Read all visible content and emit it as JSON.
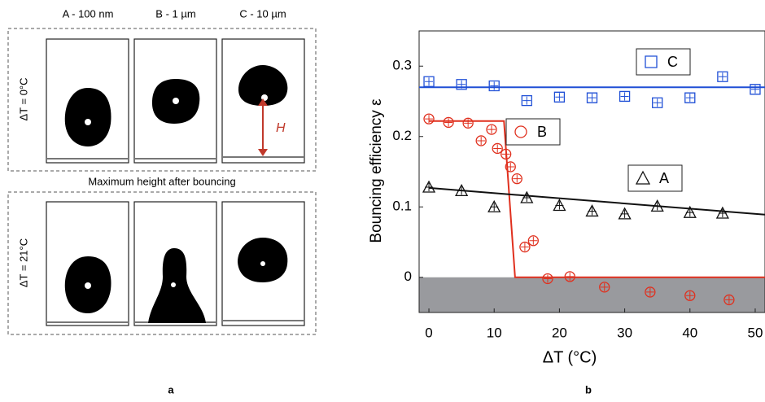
{
  "panel_a": {
    "columns": [
      "A - 100 nm",
      "B - 1 µm",
      "C - 10 µm"
    ],
    "rows": [
      "ΔT = 0°C",
      "ΔT = 21°C"
    ],
    "caption": "Maximum height after bouncing",
    "height_label": "H",
    "label": "a"
  },
  "panel_b_label": "b",
  "chart_data": {
    "type": "scatter",
    "ylabel": "Bouncing efficiency ε",
    "xlabel": "ΔT (°C)",
    "xlim": [
      -1.5,
      51.5
    ],
    "ylim": [
      -0.05,
      0.35
    ],
    "xticks": [
      0,
      10,
      20,
      30,
      40,
      50
    ],
    "yticks": [
      0,
      0.1,
      0.2,
      0.3
    ],
    "shade_below_zero": "#999a9e",
    "series": [
      {
        "name": "C",
        "color": "#1f4fd6",
        "marker": "square",
        "x": [
          0,
          5,
          10,
          15,
          20,
          25,
          30,
          35,
          40,
          45,
          50
        ],
        "values": [
          0.278,
          0.274,
          0.272,
          0.251,
          0.256,
          0.255,
          0.257,
          0.248,
          0.255,
          0.285,
          0.267
        ],
        "fit": {
          "x": [
            -1.5,
            51.5
          ],
          "values": [
            0.27,
            0.27
          ]
        }
      },
      {
        "name": "B",
        "color": "#e0301e",
        "marker": "circle",
        "x": [
          0,
          3,
          6,
          8,
          9.6,
          10.5,
          11.8,
          12.5,
          13.5,
          14.7,
          16,
          18.2,
          21.6,
          26.9,
          33.9,
          40,
          46
        ],
        "values": [
          0.225,
          0.22,
          0.219,
          0.194,
          0.21,
          0.183,
          0.175,
          0.157,
          0.14,
          0.043,
          0.052,
          -0.002,
          0.001,
          -0.014,
          -0.021,
          -0.026,
          -0.032
        ],
        "fit": {
          "x": [
            0,
            11.5,
            13.2,
            51.5
          ],
          "values": [
            0.222,
            0.222,
            0,
            0
          ]
        }
      },
      {
        "name": "A",
        "color": "#111111",
        "marker": "triangle",
        "x": [
          0,
          5,
          10,
          15,
          20,
          25,
          30,
          35,
          40,
          45
        ],
        "values": [
          0.128,
          0.123,
          0.1,
          0.113,
          0.102,
          0.094,
          0.09,
          0.101,
          0.092,
          0.091
        ],
        "fit": {
          "x": [
            0,
            51.5
          ],
          "values": [
            0.127,
            0.089
          ]
        }
      }
    ]
  }
}
